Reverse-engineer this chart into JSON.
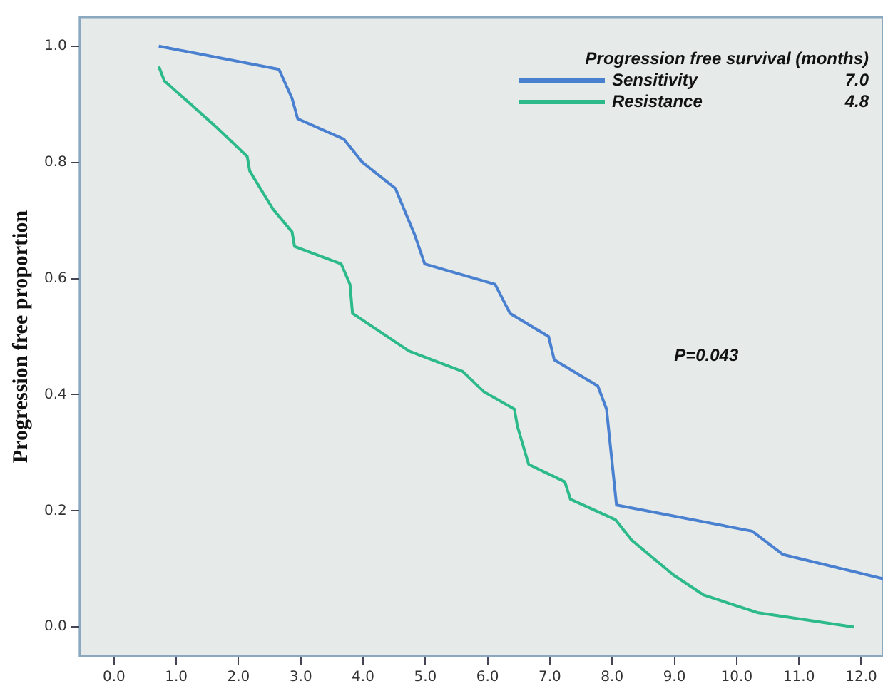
{
  "chart_data": {
    "type": "line",
    "ylabel": "Progression free proportion",
    "legend_title": "Progression free survival (months)",
    "annotations": [
      "7.0",
      "4.8",
      "P=0.043"
    ],
    "legend": "top right",
    "grid": false,
    "marker": "none",
    "line_style": "solid",
    "xlim": [
      -0.55,
      12.35
    ],
    "xticks": [
      {
        "value": 0,
        "label": "0.0"
      },
      {
        "value": 1,
        "label": "1.0"
      },
      {
        "value": 2,
        "label": "2.0"
      },
      {
        "value": 3,
        "label": "3.0"
      },
      {
        "value": 4,
        "label": "4.0"
      },
      {
        "value": 5,
        "label": "5.0"
      },
      {
        "value": 6,
        "label": "6.0"
      },
      {
        "value": 7,
        "label": "7.0"
      },
      {
        "value": 8,
        "label": "8.0"
      },
      {
        "value": 9,
        "label": "9.0"
      },
      {
        "value": 10,
        "label": "10.0"
      },
      {
        "value": 11,
        "label": "11.0"
      },
      {
        "value": 12,
        "label": "12.0"
      }
    ],
    "ylim": [
      -0.05,
      1.05
    ],
    "yticks": [
      {
        "value": 0,
        "label": "0.0"
      },
      {
        "value": 0.2,
        "label": "0.2"
      },
      {
        "value": 0.4,
        "label": "0.4"
      },
      {
        "value": 0.6,
        "label": "0.6"
      },
      {
        "value": 0.8,
        "label": "0.8"
      },
      {
        "value": 1,
        "label": "1.0"
      }
    ],
    "series": [
      {
        "name": "Sensitivity",
        "color": "#4a80d0",
        "x": [
          0.72,
          2.65,
          2.86,
          2.95,
          3.69,
          3.99,
          4.52,
          4.83,
          4.99,
          6.12,
          6.36,
          6.98,
          7.07,
          7.77,
          7.91,
          8.07,
          10.25,
          10.74,
          12.35
        ],
        "values": [
          1.0,
          0.96,
          0.91,
          0.875,
          0.84,
          0.8,
          0.755,
          0.675,
          0.625,
          0.59,
          0.54,
          0.5,
          0.46,
          0.415,
          0.375,
          0.21,
          0.165,
          0.125,
          0.083
        ]
      },
      {
        "name": "Resistance",
        "color": "#2dba8a",
        "x": [
          0.72,
          0.81,
          1.18,
          1.65,
          2.14,
          2.18,
          2.55,
          2.86,
          2.9,
          3.65,
          3.79,
          3.83,
          4.74,
          5.6,
          5.94,
          6.43,
          6.48,
          6.66,
          7.24,
          7.33,
          8.05,
          8.31,
          8.98,
          9.47,
          10.33,
          11.88
        ],
        "values": [
          0.965,
          0.94,
          0.905,
          0.86,
          0.81,
          0.785,
          0.72,
          0.68,
          0.655,
          0.625,
          0.59,
          0.54,
          0.475,
          0.44,
          0.405,
          0.375,
          0.345,
          0.28,
          0.25,
          0.22,
          0.185,
          0.15,
          0.09,
          0.055,
          0.025,
          0.0
        ]
      }
    ]
  }
}
